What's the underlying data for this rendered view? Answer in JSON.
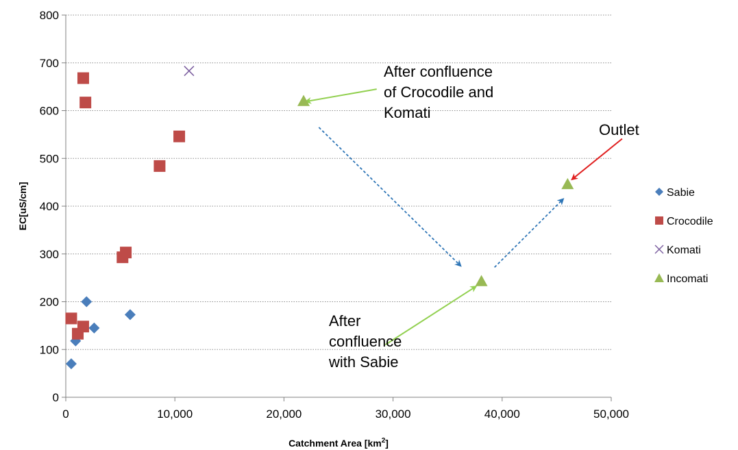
{
  "chart_data": {
    "type": "scatter",
    "title": "",
    "xlabel": "Catchment Area [km",
    "xlabel_sup": "2",
    "xlabel_end": "]",
    "ylabel": "EC[uS/cm]",
    "xlim": [
      0,
      50000
    ],
    "ylim": [
      0,
      800
    ],
    "x_ticks": [
      0,
      10000,
      20000,
      30000,
      40000,
      50000
    ],
    "x_tick_labels": [
      "0",
      "10,000",
      "20,000",
      "30,000",
      "40,000",
      "50,000"
    ],
    "y_ticks": [
      0,
      100,
      200,
      300,
      400,
      500,
      600,
      700,
      800
    ],
    "y_tick_labels": [
      "0",
      "100",
      "200",
      "300",
      "400",
      "500",
      "600",
      "700",
      "800"
    ],
    "grid": "horizontal dotted",
    "legend_position": "right",
    "series": [
      {
        "name": "Sabie",
        "marker": "diamond",
        "color": "#4a7ebb",
        "points": [
          [
            500,
            70
          ],
          [
            900,
            118
          ],
          [
            1900,
            200
          ],
          [
            2600,
            145
          ],
          [
            5900,
            173
          ]
        ]
      },
      {
        "name": "Crocodile",
        "marker": "square",
        "color": "#be4b48",
        "points": [
          [
            500,
            165
          ],
          [
            1100,
            133
          ],
          [
            1600,
            148
          ],
          [
            1600,
            668
          ],
          [
            1800,
            617
          ],
          [
            5200,
            293
          ],
          [
            5500,
            303
          ],
          [
            8600,
            484
          ],
          [
            10400,
            546
          ]
        ]
      },
      {
        "name": "Komati",
        "marker": "x",
        "color": "#7d60a0",
        "points": [
          [
            11300,
            683
          ]
        ]
      },
      {
        "name": "Incomati",
        "marker": "triangle",
        "color": "#98b954",
        "points": [
          [
            21800,
            620
          ],
          [
            38100,
            243
          ],
          [
            46000,
            446
          ]
        ]
      }
    ],
    "annotations": [
      {
        "lines": [
          "After confluence",
          "of Crocodile and",
          "Komati"
        ],
        "arrow_color": "#92d050",
        "arrow_from": [
          28500,
          645
        ],
        "arrow_to": [
          22000,
          619
        ]
      },
      {
        "lines": [
          "After",
          "confluence",
          "with Sabie"
        ],
        "arrow_color": "#92d050",
        "arrow_from": [
          29300,
          110
        ],
        "arrow_to": [
          37600,
          232
        ]
      },
      {
        "lines": [
          "Outlet"
        ],
        "arrow_color": "#e02020",
        "arrow_from": [
          51000,
          541
        ],
        "arrow_to": [
          46400,
          456
        ]
      }
    ],
    "trend_arrows": [
      {
        "from": [
          23200,
          565
        ],
        "to": [
          36200,
          275
        ],
        "color": "#2e75b6",
        "style": "dashed"
      },
      {
        "from": [
          39300,
          272
        ],
        "to": [
          45600,
          415
        ],
        "color": "#2e75b6",
        "style": "dashed"
      }
    ]
  }
}
